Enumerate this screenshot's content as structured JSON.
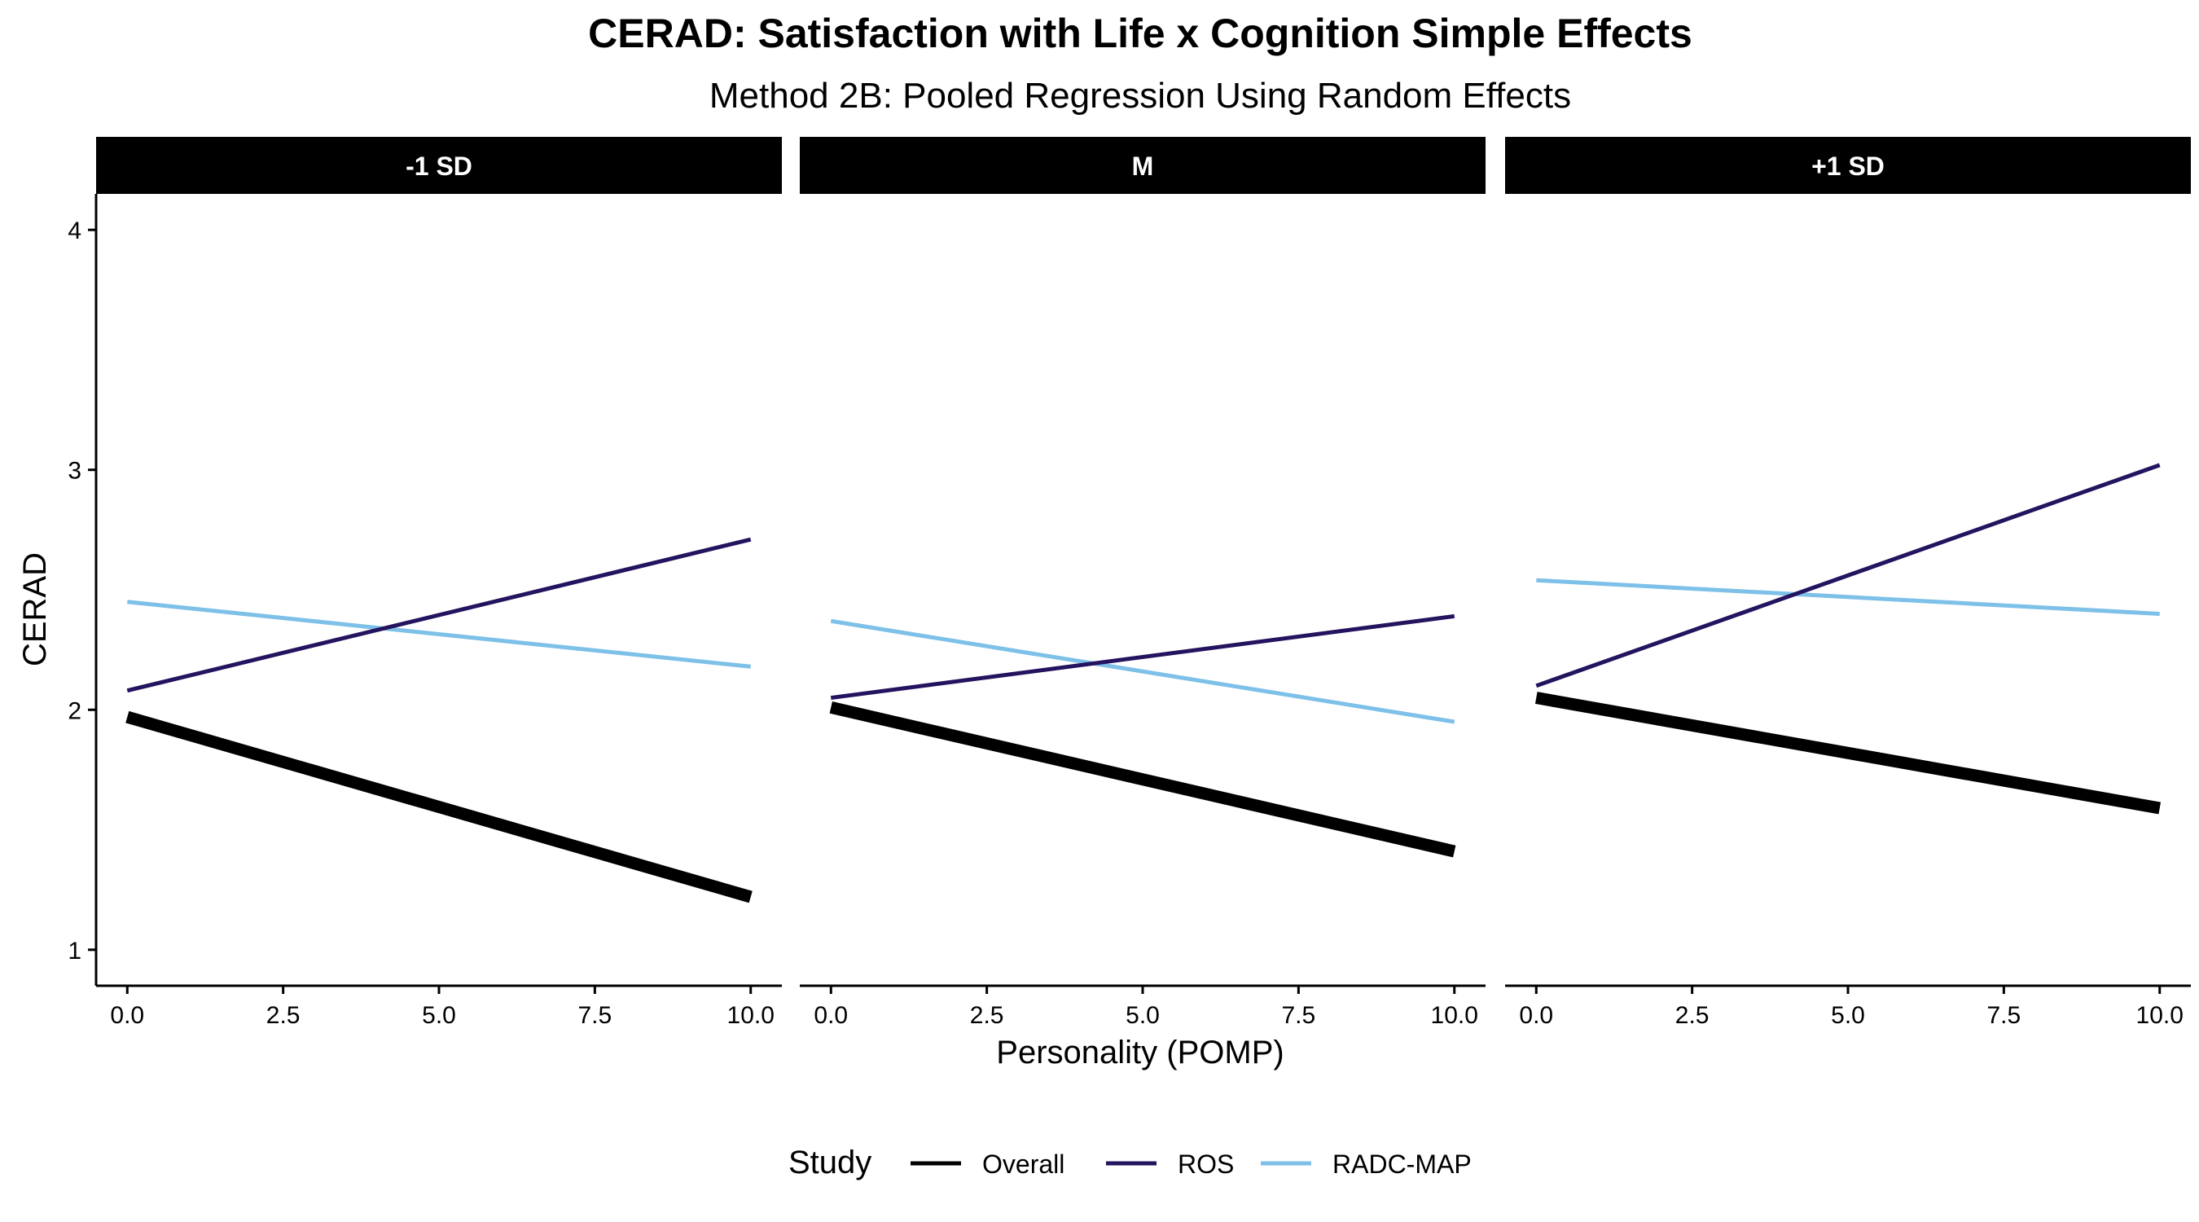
{
  "chart_data": {
    "type": "line",
    "title": "CERAD: Satisfaction with Life x Cognition Simple Effects",
    "subtitle": "Method 2B: Pooled Regression Using Random Effects",
    "xlabel": "Personality (POMP)",
    "ylabel": "CERAD",
    "xlim": [
      -0.5,
      10.5
    ],
    "ylim": [
      0.85,
      4.15
    ],
    "x_ticks": [
      "0.0",
      "2.5",
      "5.0",
      "7.5",
      "10.0"
    ],
    "y_ticks": [
      "1",
      "2",
      "3",
      "4"
    ],
    "x": [
      0,
      10
    ],
    "grid": false,
    "legend": {
      "title": "Study",
      "position": "bottom",
      "entries": [
        "Overall",
        "ROS",
        "RADC-MAP"
      ]
    },
    "series_style": [
      {
        "name": "Overall",
        "color": "#000000",
        "weight": "thick"
      },
      {
        "name": "ROS",
        "color": "#24135f",
        "weight": "thin"
      },
      {
        "name": "RADC-MAP",
        "color": "#7dc0e8",
        "weight": "thin"
      }
    ],
    "panels": [
      {
        "label": "-1 SD",
        "series": [
          {
            "name": "Overall",
            "values": [
              1.97,
              1.22
            ]
          },
          {
            "name": "ROS",
            "values": [
              2.08,
              2.71
            ]
          },
          {
            "name": "RADC-MAP",
            "values": [
              2.45,
              2.18
            ]
          }
        ]
      },
      {
        "label": "M",
        "series": [
          {
            "name": "Overall",
            "values": [
              2.01,
              1.41
            ]
          },
          {
            "name": "ROS",
            "values": [
              2.05,
              2.39
            ]
          },
          {
            "name": "RADC-MAP",
            "values": [
              2.37,
              1.95
            ]
          }
        ]
      },
      {
        "label": "+1 SD",
        "series": [
          {
            "name": "Overall",
            "values": [
              2.05,
              1.59
            ]
          },
          {
            "name": "ROS",
            "values": [
              2.1,
              3.02
            ]
          },
          {
            "name": "RADC-MAP",
            "values": [
              2.54,
              2.4
            ]
          }
        ]
      }
    ]
  }
}
